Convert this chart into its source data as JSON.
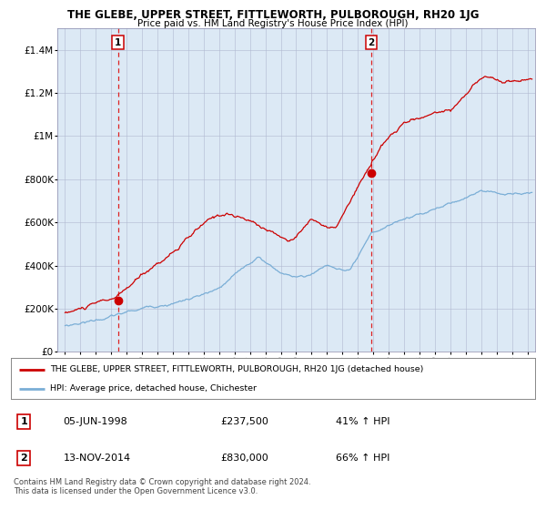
{
  "title": "THE GLEBE, UPPER STREET, FITTLEWORTH, PULBOROUGH, RH20 1JG",
  "subtitle": "Price paid vs. HM Land Registry's House Price Index (HPI)",
  "bg_color": "#dce9f5",
  "plot_bg_color": "#dce9f5",
  "red_line_color": "#cc0000",
  "blue_line_color": "#7aaed6",
  "dashed_line_color": "#dd2222",
  "dot_color": "#cc0000",
  "grid_color": "#b0b8d0",
  "legend_line1": "THE GLEBE, UPPER STREET, FITTLEWORTH, PULBOROUGH, RH20 1JG (detached house)",
  "legend_line2": "HPI: Average price, detached house, Chichester",
  "sale1_date": 1998.43,
  "sale1_price": 237500,
  "sale1_label": "1",
  "sale2_date": 2014.87,
  "sale2_price": 830000,
  "sale2_label": "2",
  "table_row1": [
    "1",
    "05-JUN-1998",
    "£237,500",
    "41% ↑ HPI"
  ],
  "table_row2": [
    "2",
    "13-NOV-2014",
    "£830,000",
    "66% ↑ HPI"
  ],
  "footer": "Contains HM Land Registry data © Crown copyright and database right 2024.\nThis data is licensed under the Open Government Licence v3.0.",
  "xlim": [
    1994.5,
    2025.5
  ],
  "ylim": [
    0,
    1500000
  ],
  "yticks": [
    0,
    200000,
    400000,
    600000,
    800000,
    1000000,
    1200000,
    1400000
  ],
  "ytick_labels": [
    "£0",
    "£200K",
    "£400K",
    "£600K",
    "£800K",
    "£1M",
    "£1.2M",
    "£1.4M"
  ],
  "xticks": [
    1995,
    1996,
    1997,
    1998,
    1999,
    2000,
    2001,
    2002,
    2003,
    2004,
    2005,
    2006,
    2007,
    2008,
    2009,
    2010,
    2011,
    2012,
    2013,
    2014,
    2015,
    2016,
    2017,
    2018,
    2019,
    2020,
    2021,
    2022,
    2023,
    2024,
    2025
  ]
}
